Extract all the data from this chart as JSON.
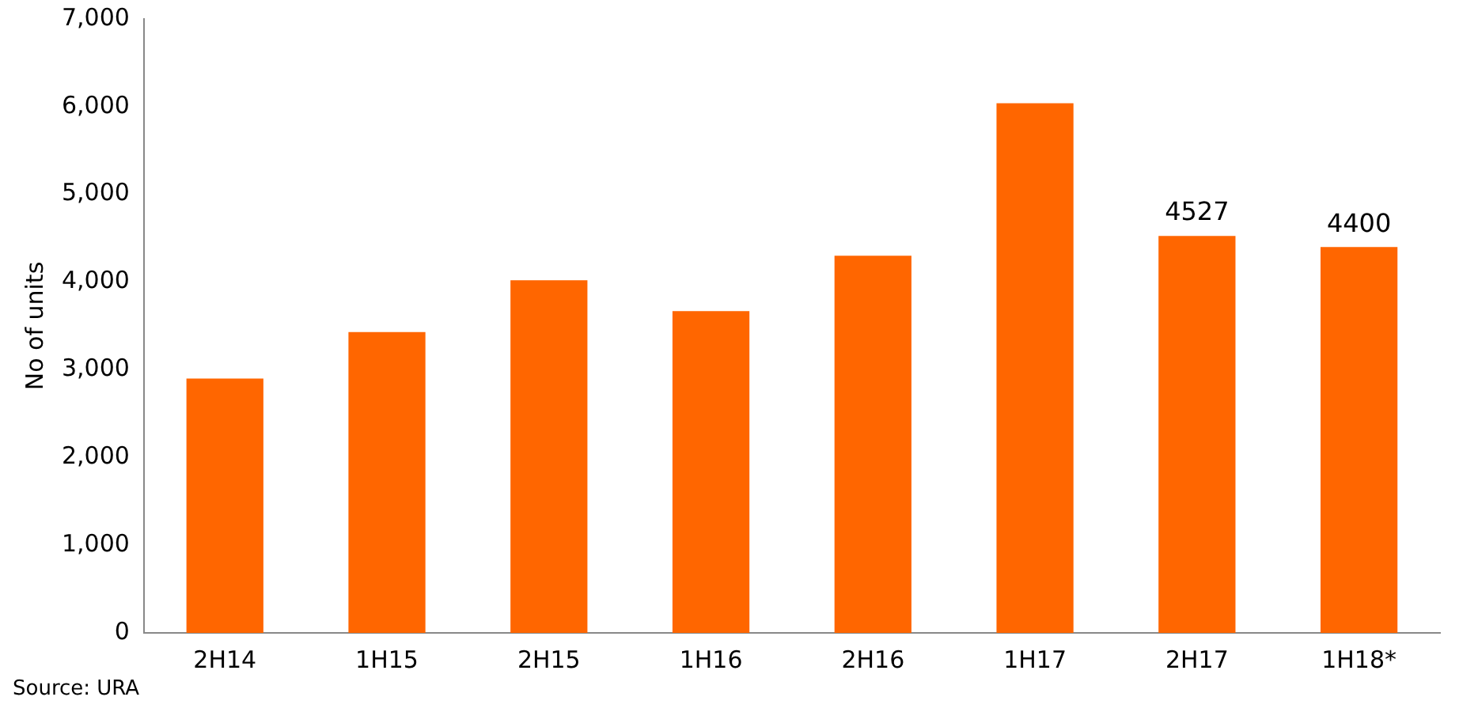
{
  "chart_data": {
    "type": "bar",
    "ylabel": "No of units",
    "categories": [
      "2H14",
      "1H15",
      "2H15",
      "1H16",
      "2H16",
      "1H17",
      "2H17",
      "1H18*"
    ],
    "values": [
      2900,
      3430,
      4020,
      3670,
      4300,
      6040,
      4527,
      4400
    ],
    "value_labels": [
      null,
      null,
      null,
      null,
      null,
      null,
      "4527",
      "4400"
    ],
    "color": "#ff6600",
    "ylim": [
      0,
      7000
    ],
    "yticks": [
      {
        "value": 0,
        "label": "0"
      },
      {
        "value": 1000,
        "label": "1,000"
      },
      {
        "value": 2000,
        "label": "2,000"
      },
      {
        "value": 3000,
        "label": "3,000"
      },
      {
        "value": 4000,
        "label": "4,000"
      },
      {
        "value": 5000,
        "label": "5,000"
      },
      {
        "value": 6000,
        "label": "6,000"
      },
      {
        "value": 7000,
        "label": "7,000"
      }
    ],
    "grid": false,
    "legend": false,
    "annotations": [
      "Source: URA"
    ]
  }
}
